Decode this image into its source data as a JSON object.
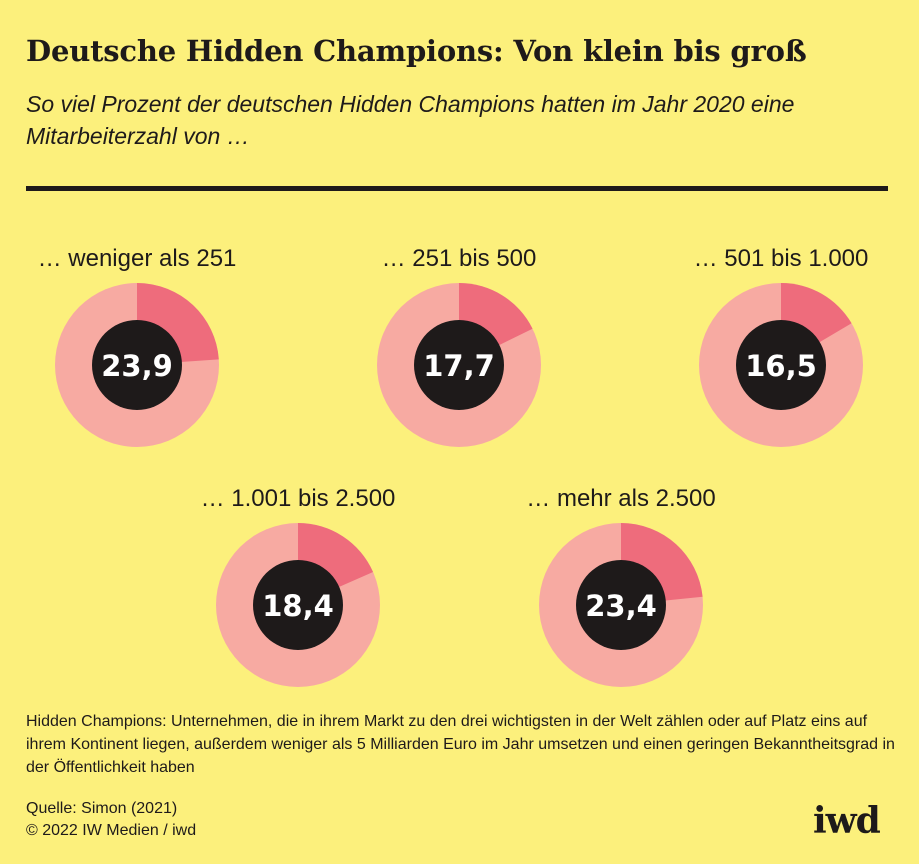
{
  "header": {
    "title": "Deutsche Hidden Champions: Von klein bis groß",
    "subtitle": "So viel Prozent der deutschen Hidden Champions hatten im Jahr 2020 eine Mitarbeiterzahl von …"
  },
  "chart_data": {
    "type": "pie",
    "categories": [
      "… weniger als 251",
      "… 251 bis 500",
      "… 501 bis 1.000",
      "… 1.001 bis 2.500",
      "… mehr als 2.500"
    ],
    "values": [
      23.9,
      17.7,
      16.5,
      18.4,
      23.4
    ],
    "value_labels": [
      "23,9",
      "17,7",
      "16,5",
      "18,4",
      "23,4"
    ],
    "unit": "Prozent"
  },
  "colors": {
    "background": "#fcf07c",
    "ring": "#f7aaa2",
    "highlight": "#ee6c7c",
    "center": "#1e1a1a",
    "center_text": "#ffffff"
  },
  "footer": {
    "note": "Hidden Champions: Unternehmen, die in ihrem Markt zu den drei wichtigsten in der Welt zählen oder auf Platz eins auf ihrem Kontinent liegen, außerdem weniger als 5 Milliarden Euro im Jahr umsetzen und einen geringen Bekanntheitsgrad in der Öffentlichkeit haben",
    "source": "Quelle: Simon (2021)",
    "copyright": "© 2022 IW Medien / iwd",
    "logo": "iwd"
  }
}
